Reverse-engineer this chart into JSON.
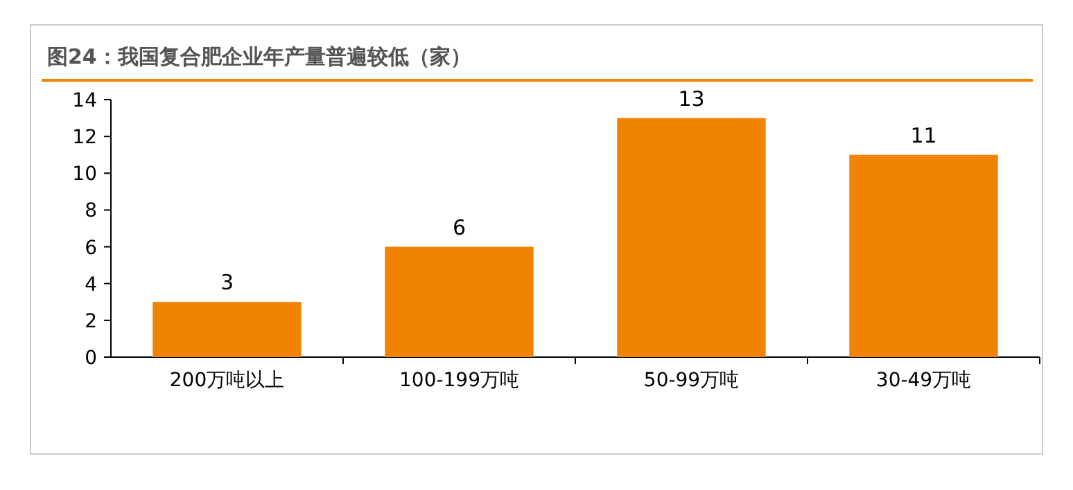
{
  "chart_data": {
    "type": "bar",
    "title": "图24：我国复合肥企业年产量普遍较低（家）",
    "categories": [
      "200万吨以上",
      "100-199万吨",
      "50-99万吨",
      "30-49万吨"
    ],
    "values": [
      3,
      6,
      13,
      11
    ],
    "color": "#f08300",
    "ylim": [
      0,
      14
    ],
    "yticks": [
      0,
      2,
      4,
      6,
      8,
      10,
      12,
      14
    ],
    "data_labels": true
  }
}
